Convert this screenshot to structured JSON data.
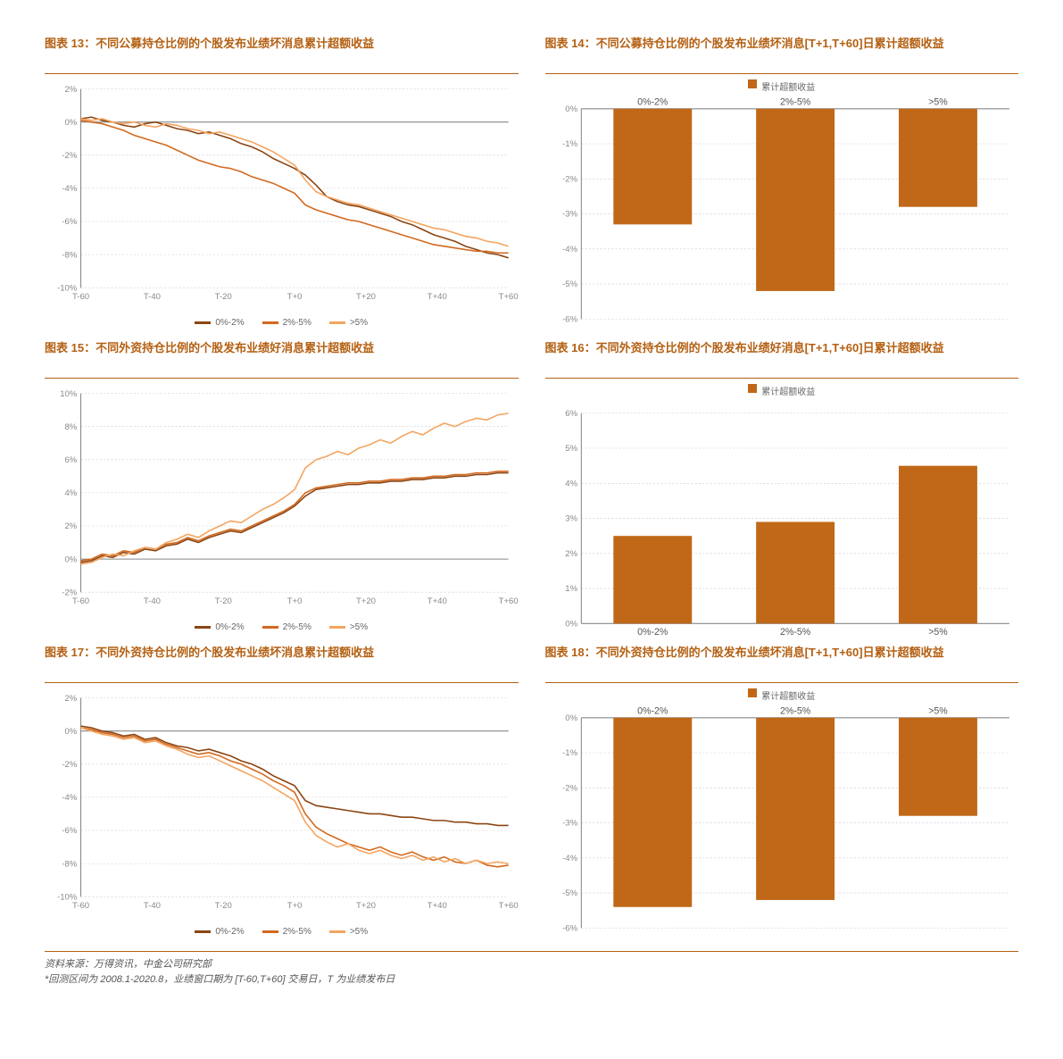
{
  "colors": {
    "accent": "#b46012",
    "series": [
      "#8b4513",
      "#d2691e",
      "#f4a460"
    ],
    "bar": "#c06818",
    "grid": "#cccccc",
    "axis": "#888888",
    "bg": "#ffffff"
  },
  "legend_labels": [
    "0%-2%",
    "2%-5%",
    ">5%"
  ],
  "bar_legend": "累计超额收益",
  "charts": [
    {
      "id": "c13",
      "title": "图表 13：不同公募持仓比例的个股发布业绩坏消息累计超额收益",
      "type": "line",
      "ylim": [
        -10,
        2
      ],
      "ytick_step": 2,
      "xlim": [
        -60,
        60
      ],
      "xtick_step": 20,
      "xticks_labels": [
        "T-60",
        "T-40",
        "T-20",
        "T+0",
        "T+20",
        "T+40",
        "T+60"
      ],
      "series": [
        [
          0.2,
          0.3,
          0.1,
          0.0,
          -0.2,
          -0.3,
          -0.1,
          0.0,
          -0.2,
          -0.4,
          -0.5,
          -0.7,
          -0.6,
          -0.8,
          -1.0,
          -1.3,
          -1.5,
          -1.8,
          -2.2,
          -2.5,
          -2.8,
          -3.2,
          -3.8,
          -4.5,
          -4.8,
          -5.0,
          -5.1,
          -5.3,
          -5.5,
          -5.7,
          -6.0,
          -6.2,
          -6.5,
          -6.8,
          -7.0,
          -7.2,
          -7.5,
          -7.7,
          -7.9,
          -8.0,
          -8.2
        ],
        [
          0.1,
          0.0,
          -0.1,
          -0.3,
          -0.5,
          -0.8,
          -1.0,
          -1.2,
          -1.4,
          -1.7,
          -2.0,
          -2.3,
          -2.5,
          -2.7,
          -2.8,
          -3.0,
          -3.3,
          -3.5,
          -3.7,
          -4.0,
          -4.3,
          -5.0,
          -5.3,
          -5.5,
          -5.7,
          -5.9,
          -6.0,
          -6.2,
          -6.4,
          -6.6,
          -6.8,
          -7.0,
          -7.2,
          -7.4,
          -7.5,
          -7.6,
          -7.7,
          -7.8,
          -7.8,
          -7.9,
          -7.9
        ],
        [
          0.2,
          0.1,
          0.2,
          0.0,
          -0.1,
          0.0,
          -0.2,
          -0.3,
          -0.1,
          -0.2,
          -0.4,
          -0.5,
          -0.7,
          -0.6,
          -0.8,
          -1.0,
          -1.2,
          -1.5,
          -1.8,
          -2.2,
          -2.6,
          -3.5,
          -4.2,
          -4.5,
          -4.7,
          -4.9,
          -5.0,
          -5.2,
          -5.4,
          -5.6,
          -5.8,
          -6.0,
          -6.2,
          -6.4,
          -6.5,
          -6.7,
          -6.9,
          -7.0,
          -7.2,
          -7.3,
          -7.5
        ]
      ]
    },
    {
      "id": "c14",
      "title": "图表 14：不同公募持仓比例的个股发布业绩坏消息[T+1,T+60]日累计超额收益",
      "type": "bar",
      "ylim": [
        -6,
        0
      ],
      "ytick_step": 1,
      "categories": [
        "0%-2%",
        "2%-5%",
        ">5%"
      ],
      "values": [
        -3.3,
        -5.2,
        -2.8
      ]
    },
    {
      "id": "c15",
      "title": "图表 15：不同外资持仓比例的个股发布业绩好消息累计超额收益",
      "type": "line",
      "ylim": [
        -2,
        10
      ],
      "ytick_step": 2,
      "xlim": [
        -60,
        60
      ],
      "xtick_step": 20,
      "xticks_labels": [
        "T-60",
        "T-40",
        "T-20",
        "T+0",
        "T+20",
        "T+40",
        "T+60"
      ],
      "series": [
        [
          -0.2,
          -0.1,
          0.2,
          0.1,
          0.4,
          0.3,
          0.6,
          0.5,
          0.8,
          0.9,
          1.2,
          1.0,
          1.3,
          1.5,
          1.7,
          1.6,
          1.9,
          2.2,
          2.5,
          2.8,
          3.2,
          3.8,
          4.2,
          4.3,
          4.4,
          4.5,
          4.5,
          4.6,
          4.6,
          4.7,
          4.7,
          4.8,
          4.8,
          4.9,
          4.9,
          5.0,
          5.0,
          5.1,
          5.1,
          5.2,
          5.2
        ],
        [
          -0.1,
          0.0,
          0.3,
          0.2,
          0.5,
          0.4,
          0.7,
          0.6,
          0.9,
          1.0,
          1.3,
          1.1,
          1.4,
          1.6,
          1.8,
          1.7,
          2.0,
          2.3,
          2.6,
          2.9,
          3.3,
          4.0,
          4.3,
          4.4,
          4.5,
          4.6,
          4.6,
          4.7,
          4.7,
          4.8,
          4.8,
          4.9,
          4.9,
          5.0,
          5.0,
          5.1,
          5.1,
          5.2,
          5.2,
          5.3,
          5.3
        ],
        [
          -0.3,
          -0.2,
          0.1,
          0.3,
          0.2,
          0.5,
          0.7,
          0.6,
          1.0,
          1.2,
          1.5,
          1.3,
          1.7,
          2.0,
          2.3,
          2.2,
          2.6,
          3.0,
          3.3,
          3.7,
          4.2,
          5.5,
          6.0,
          6.2,
          6.5,
          6.3,
          6.7,
          6.9,
          7.2,
          7.0,
          7.4,
          7.7,
          7.5,
          7.9,
          8.2,
          8.0,
          8.3,
          8.5,
          8.4,
          8.7,
          8.8
        ]
      ]
    },
    {
      "id": "c16",
      "title": "图表 16：不同外资持仓比例的个股发布业绩好消息[T+1,T+60]日累计超额收益",
      "type": "bar",
      "ylim": [
        0,
        6
      ],
      "ytick_step": 1,
      "categories": [
        "0%-2%",
        "2%-5%",
        ">5%"
      ],
      "values": [
        2.5,
        2.9,
        4.5
      ]
    },
    {
      "id": "c17",
      "title": "图表 17：不同外资持仓比例的个股发布业绩坏消息累计超额收益",
      "type": "line",
      "ylim": [
        -10,
        2
      ],
      "ytick_step": 2,
      "xlim": [
        -60,
        60
      ],
      "xtick_step": 20,
      "xticks_labels": [
        "T-60",
        "T-40",
        "T-20",
        "T+0",
        "T+20",
        "T+40",
        "T+60"
      ],
      "series": [
        [
          0.3,
          0.2,
          0.0,
          -0.1,
          -0.3,
          -0.2,
          -0.5,
          -0.4,
          -0.7,
          -0.9,
          -1.0,
          -1.2,
          -1.1,
          -1.3,
          -1.5,
          -1.8,
          -2.0,
          -2.3,
          -2.7,
          -3.0,
          -3.3,
          -4.2,
          -4.5,
          -4.6,
          -4.7,
          -4.8,
          -4.9,
          -5.0,
          -5.0,
          -5.1,
          -5.2,
          -5.2,
          -5.3,
          -5.4,
          -5.4,
          -5.5,
          -5.5,
          -5.6,
          -5.6,
          -5.7,
          -5.7
        ],
        [
          0.2,
          0.1,
          -0.1,
          -0.2,
          -0.4,
          -0.3,
          -0.6,
          -0.5,
          -0.8,
          -1.0,
          -1.2,
          -1.4,
          -1.3,
          -1.5,
          -1.8,
          -2.0,
          -2.3,
          -2.6,
          -3.0,
          -3.3,
          -3.7,
          -5.0,
          -5.8,
          -6.2,
          -6.5,
          -6.8,
          -7.0,
          -7.2,
          -7.0,
          -7.3,
          -7.5,
          -7.3,
          -7.6,
          -7.8,
          -7.6,
          -7.9,
          -8.0,
          -7.8,
          -8.1,
          -8.2,
          -8.1
        ],
        [
          0.2,
          0.0,
          -0.2,
          -0.3,
          -0.5,
          -0.4,
          -0.7,
          -0.6,
          -0.9,
          -1.1,
          -1.4,
          -1.6,
          -1.5,
          -1.8,
          -2.1,
          -2.4,
          -2.7,
          -3.0,
          -3.4,
          -3.8,
          -4.2,
          -5.5,
          -6.3,
          -6.7,
          -7.0,
          -6.8,
          -7.2,
          -7.4,
          -7.2,
          -7.5,
          -7.7,
          -7.5,
          -7.8,
          -7.6,
          -7.9,
          -7.7,
          -8.0,
          -7.8,
          -8.0,
          -7.9,
          -8.0
        ]
      ]
    },
    {
      "id": "c18",
      "title": "图表 18：不同外资持仓比例的个股发布业绩坏消息[T+1,T+60]日累计超额收益",
      "type": "bar",
      "ylim": [
        -6,
        0
      ],
      "ytick_step": 1,
      "categories": [
        "0%-2%",
        "2%-5%",
        ">5%"
      ],
      "values": [
        -5.4,
        -5.2,
        -2.8
      ]
    }
  ],
  "footer": {
    "line1": "资料来源：万得资讯，中金公司研究部",
    "line2": "*回测区间为 2008.1-2020.8，业绩窗口期为 [T-60,T+60] 交易日，T 为业绩发布日"
  },
  "style": {
    "title_fontsize": 13,
    "axis_fontsize": 9,
    "line_width": 1.5,
    "bar_width_ratio": 0.55
  }
}
